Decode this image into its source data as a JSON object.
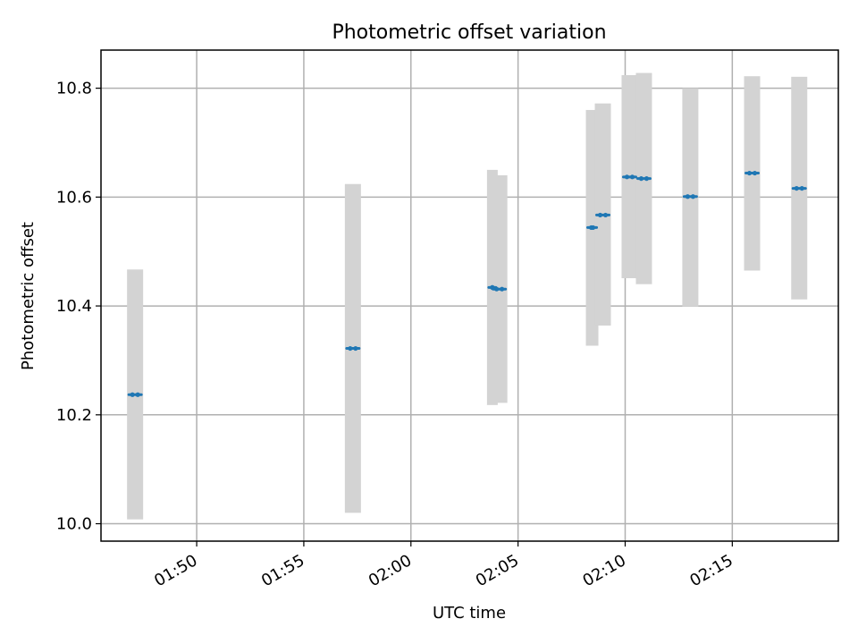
{
  "chart_data": {
    "type": "scatter",
    "title": "Photometric offset variation",
    "xlabel": "UTC time",
    "ylabel": "Photometric offset",
    "x_axis": {
      "kind": "time",
      "xlim": [
        "01:45:32",
        "02:19:57"
      ],
      "ticks": [
        "01:50",
        "01:55",
        "02:00",
        "02:05",
        "02:10",
        "02:15"
      ]
    },
    "y_axis": {
      "ylim": [
        9.968,
        10.87
      ],
      "ticks": [
        "10.0",
        "10.2",
        "10.4",
        "10.6",
        "10.8"
      ]
    },
    "grid": true,
    "colors": {
      "points": "#1f77b4",
      "error_bars": "#d3d3d3",
      "grid": "#b0b0b0"
    },
    "series": [
      {
        "points": [
          {
            "x": [
              "01:47:00",
              "01:47:15"
            ],
            "y": 10.237,
            "low": 10.008,
            "high": 10.467
          },
          {
            "x": [
              "01:57:10",
              "01:57:25"
            ],
            "y": 10.322,
            "low": 10.02,
            "high": 10.624
          },
          {
            "x": [
              "02:03:48",
              "02:03:48"
            ],
            "y": 10.434,
            "low": 10.218,
            "high": 10.65
          },
          {
            "x": [
              "02:04:00",
              "02:04:15"
            ],
            "y": 10.431,
            "low": 10.222,
            "high": 10.64
          },
          {
            "x": [
              "02:08:25",
              "02:08:30"
            ],
            "y": 10.544,
            "low": 10.327,
            "high": 10.76
          },
          {
            "x": [
              "02:08:50",
              "02:09:05"
            ],
            "y": 10.567,
            "low": 10.364,
            "high": 10.772
          },
          {
            "x": [
              "02:10:05",
              "02:10:20"
            ],
            "y": 10.637,
            "low": 10.451,
            "high": 10.824
          },
          {
            "x": [
              "02:10:45",
              "02:11:00"
            ],
            "y": 10.634,
            "low": 10.44,
            "high": 10.828
          },
          {
            "x": [
              "02:12:55",
              "02:13:10"
            ],
            "y": 10.601,
            "low": 10.399,
            "high": 10.8
          },
          {
            "x": [
              "02:15:48",
              "02:16:03"
            ],
            "y": 10.644,
            "low": 10.465,
            "high": 10.822
          },
          {
            "x": [
              "02:18:00",
              "02:18:15"
            ],
            "y": 10.616,
            "low": 10.412,
            "high": 10.821
          }
        ]
      }
    ]
  }
}
